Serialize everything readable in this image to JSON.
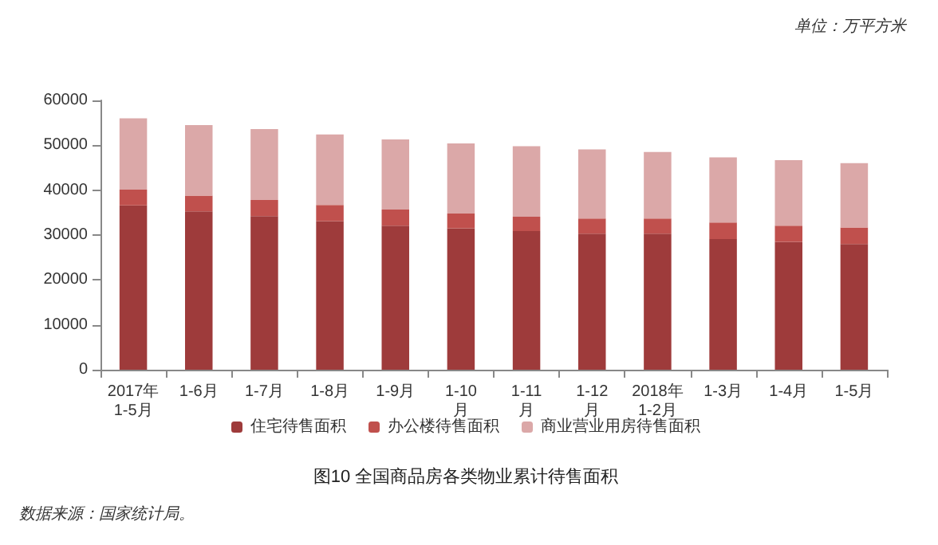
{
  "chart_data": {
    "type": "bar",
    "title": "图10 全国商品房各类物业累计待售面积",
    "annotations": [
      "单位：万平方米",
      "数据来源：国家统计局。"
    ],
    "categories": [
      "2017年\n1-5月",
      "1-6月",
      "1-7月",
      "1-8月",
      "1-9月",
      "1-10\n月",
      "1-11\n月",
      "1-12\n月",
      "2018年\n1-2月",
      "1-3月",
      "1-4月",
      "1-5月"
    ],
    "stacked": true,
    "series": [
      {
        "name": "住宅待售面积",
        "color": "#9e3b3b",
        "values": [
          36600,
          35300,
          34200,
          33100,
          32100,
          31500,
          30900,
          30300,
          30300,
          29100,
          28500,
          28000
        ]
      },
      {
        "name": "办公楼待售面积",
        "color": "#c0504d",
        "values": [
          3500,
          3500,
          3600,
          3600,
          3600,
          3300,
          3200,
          3400,
          3400,
          3700,
          3600,
          3700
        ]
      },
      {
        "name": "商业营业用房待售面积",
        "color": "#dba8a8",
        "values": [
          15900,
          15700,
          15800,
          15700,
          15600,
          15600,
          15700,
          15400,
          14800,
          14500,
          14600,
          14300
        ]
      }
    ],
    "ylim": [
      0,
      60000
    ],
    "yticks": [
      0,
      10000,
      20000,
      30000,
      40000,
      50000,
      60000
    ],
    "grid": false,
    "legend": "bottom"
  }
}
